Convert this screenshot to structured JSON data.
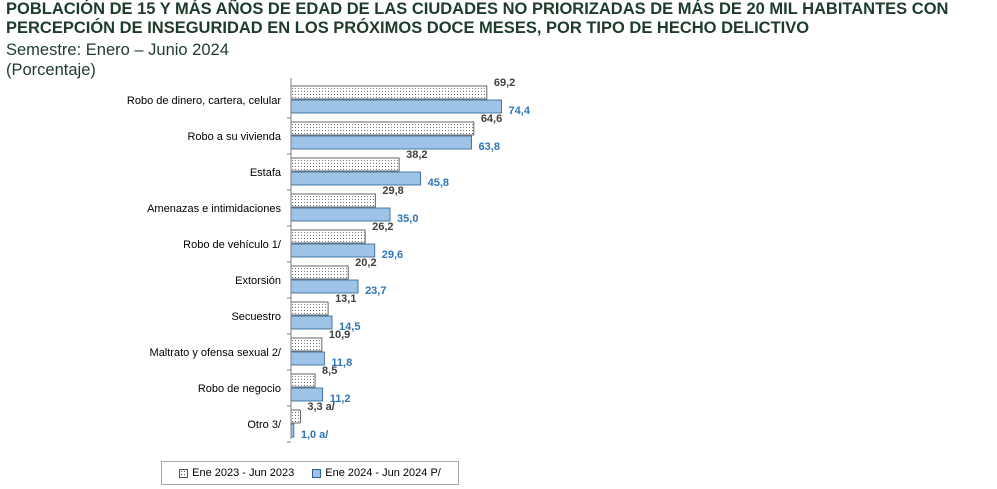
{
  "chart_data": {
    "type": "bar",
    "orientation": "horizontal",
    "title": "POBLACIÓN DE 15 Y MÁS AÑOS DE EDAD DE LAS CIUDADES NO PRIORIZADAS DE MÁS DE 20 MIL HABITANTES CON PERCEPCIÓN DE INSEGURIDAD EN LOS PRÓXIMOS DOCE MESES, POR TIPO DE HECHO DELICTIVO",
    "subtitle": "Semestre: Enero – Junio 2024",
    "unit_note": "(Porcentaje)",
    "categories": [
      "Robo de dinero, cartera, celular",
      "Robo a su vivienda",
      "Estafa",
      "Amenazas e intimidaciones",
      "Robo  de vehículo 1/",
      "Extorsión",
      "Secuestro",
      "Maltrato y ofensa sexual 2/",
      "Robo de negocio",
      "Otro 3/"
    ],
    "series": [
      {
        "name": "Ene 2023 - Jun 2023",
        "values": [
          69.2,
          64.6,
          38.2,
          29.8,
          26.2,
          20.2,
          13.1,
          10.9,
          8.5,
          3.3
        ],
        "labels": [
          "69,2",
          "64,6",
          "38,2",
          "29,8",
          "26,2",
          "20,2",
          "13,1",
          "10,9",
          "8,5",
          "3,3 a/"
        ],
        "color": "#ffffff",
        "pattern": "dotted",
        "label_color": "#404040"
      },
      {
        "name": "Ene 2024 - Jun 2024 P/",
        "values": [
          74.4,
          63.8,
          45.8,
          35.0,
          29.6,
          23.7,
          14.5,
          11.8,
          11.2,
          1.0
        ],
        "labels": [
          "74,4",
          "63,8",
          "45,8",
          "35,0",
          "29,6",
          "23,7",
          "14,5",
          "11,8",
          "11,2",
          "1,0 a/"
        ],
        "color": "#9dc3e6",
        "label_color": "#2e75b6"
      }
    ],
    "xlim": [
      0,
      100
    ],
    "grid": false,
    "legend_position": "bottom"
  }
}
